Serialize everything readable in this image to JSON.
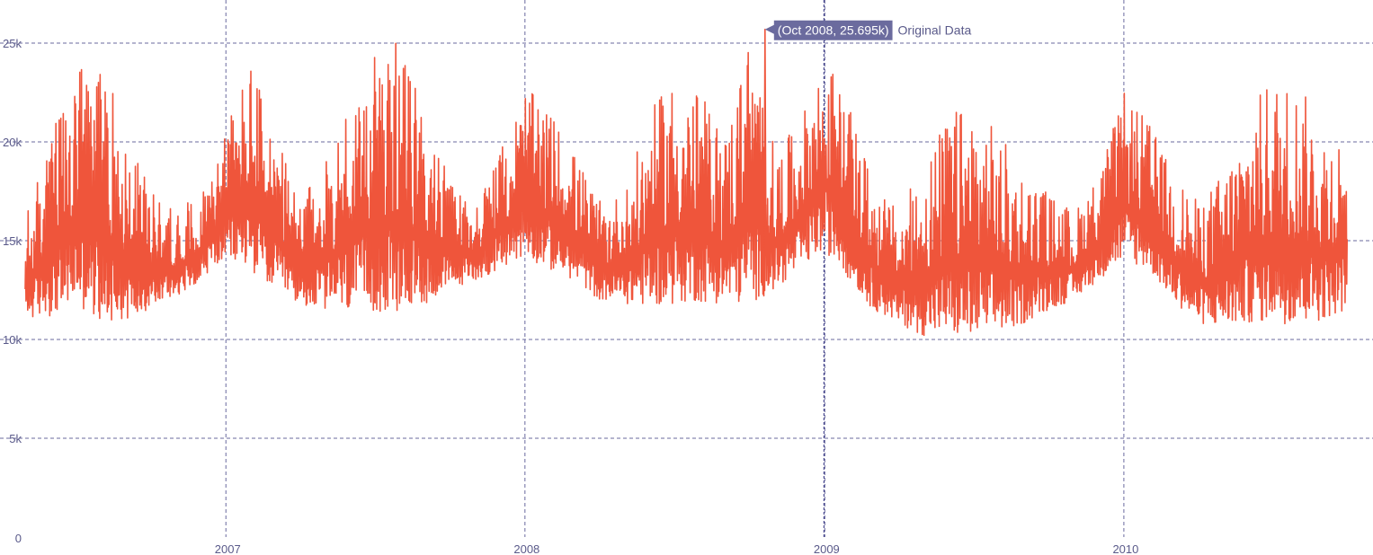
{
  "chart_data": {
    "type": "line",
    "title": "",
    "xlabel": "",
    "ylabel": "",
    "x_range": [
      "2006-05-01",
      "2010-10-31"
    ],
    "ylim": [
      0,
      27000
    ],
    "y_ticks": [
      {
        "value": 0,
        "label": "0"
      },
      {
        "value": 5000,
        "label": "5k"
      },
      {
        "value": 10000,
        "label": "10k"
      },
      {
        "value": 15000,
        "label": "15k"
      },
      {
        "value": 20000,
        "label": "20k"
      },
      {
        "value": 25000,
        "label": "25k"
      }
    ],
    "x_ticks": [
      {
        "value": "2007-01-01",
        "label": "2007"
      },
      {
        "value": "2008-01-01",
        "label": "2008"
      },
      {
        "value": "2009-01-01",
        "label": "2009"
      },
      {
        "value": "2010-01-01",
        "label": "2010"
      }
    ],
    "grid": true,
    "series": [
      {
        "name": "Original Data",
        "color": "#ef553b",
        "x": [
          "2006-05-01",
          "2006-06-01",
          "2006-07-01",
          "2006-08-01",
          "2006-09-01",
          "2006-10-01",
          "2006-11-01",
          "2006-12-01",
          "2007-01-01",
          "2007-02-01",
          "2007-03-01",
          "2007-04-01",
          "2007-05-01",
          "2007-06-01",
          "2007-07-01",
          "2007-08-01",
          "2007-09-01",
          "2007-10-01",
          "2007-11-01",
          "2007-12-01",
          "2008-01-01",
          "2008-02-01",
          "2008-03-01",
          "2008-04-01",
          "2008-05-01",
          "2008-06-01",
          "2008-07-01",
          "2008-08-01",
          "2008-09-01",
          "2008-10-01",
          "2008-11-01",
          "2008-12-01",
          "2009-01-01",
          "2009-02-01",
          "2009-03-01",
          "2009-04-01",
          "2009-05-01",
          "2009-06-01",
          "2009-07-01",
          "2009-08-01",
          "2009-09-01",
          "2009-10-01",
          "2009-11-01",
          "2009-12-01",
          "2010-01-01",
          "2010-02-01",
          "2010-03-01",
          "2010-04-01",
          "2010-05-01",
          "2010-06-01",
          "2010-07-01",
          "2010-08-01",
          "2010-09-01",
          "2010-10-01"
        ],
        "y_low": [
          11000,
          11200,
          11800,
          10800,
          11000,
          11500,
          12200,
          13000,
          14000,
          13500,
          12500,
          11800,
          11500,
          11300,
          11400,
          11200,
          11800,
          12500,
          13000,
          13500,
          14200,
          13500,
          13000,
          12000,
          11800,
          11700,
          11800,
          11900,
          11800,
          11800,
          12500,
          13500,
          14500,
          13000,
          11500,
          10800,
          10200,
          10100,
          10000,
          10300,
          10800,
          11500,
          12000,
          13000,
          14000,
          13500,
          12000,
          10800,
          10600,
          10800,
          10900,
          10700,
          11000,
          11500
        ],
        "y_high": [
          16200,
          20500,
          23500,
          24900,
          20500,
          17500,
          16500,
          17500,
          21000,
          24300,
          20500,
          17000,
          19000,
          22500,
          24500,
          25100,
          21500,
          18000,
          17000,
          19500,
          22800,
          21500,
          19500,
          17000,
          17500,
          21500,
          23500,
          22500,
          20500,
          25695,
          19500,
          21000,
          24600,
          21500,
          18000,
          16500,
          19000,
          21500,
          22000,
          20500,
          18500,
          17500,
          16500,
          18500,
          22500,
          21000,
          18500,
          17000,
          18500,
          21500,
          23500,
          23000,
          21000,
          20500
        ]
      }
    ],
    "hover": {
      "label": "(Oct 2008, 25.695k)",
      "series_name": "Original Data",
      "x": "2008-10-20",
      "y": 25695
    },
    "spike_x": "2008-12-31"
  }
}
